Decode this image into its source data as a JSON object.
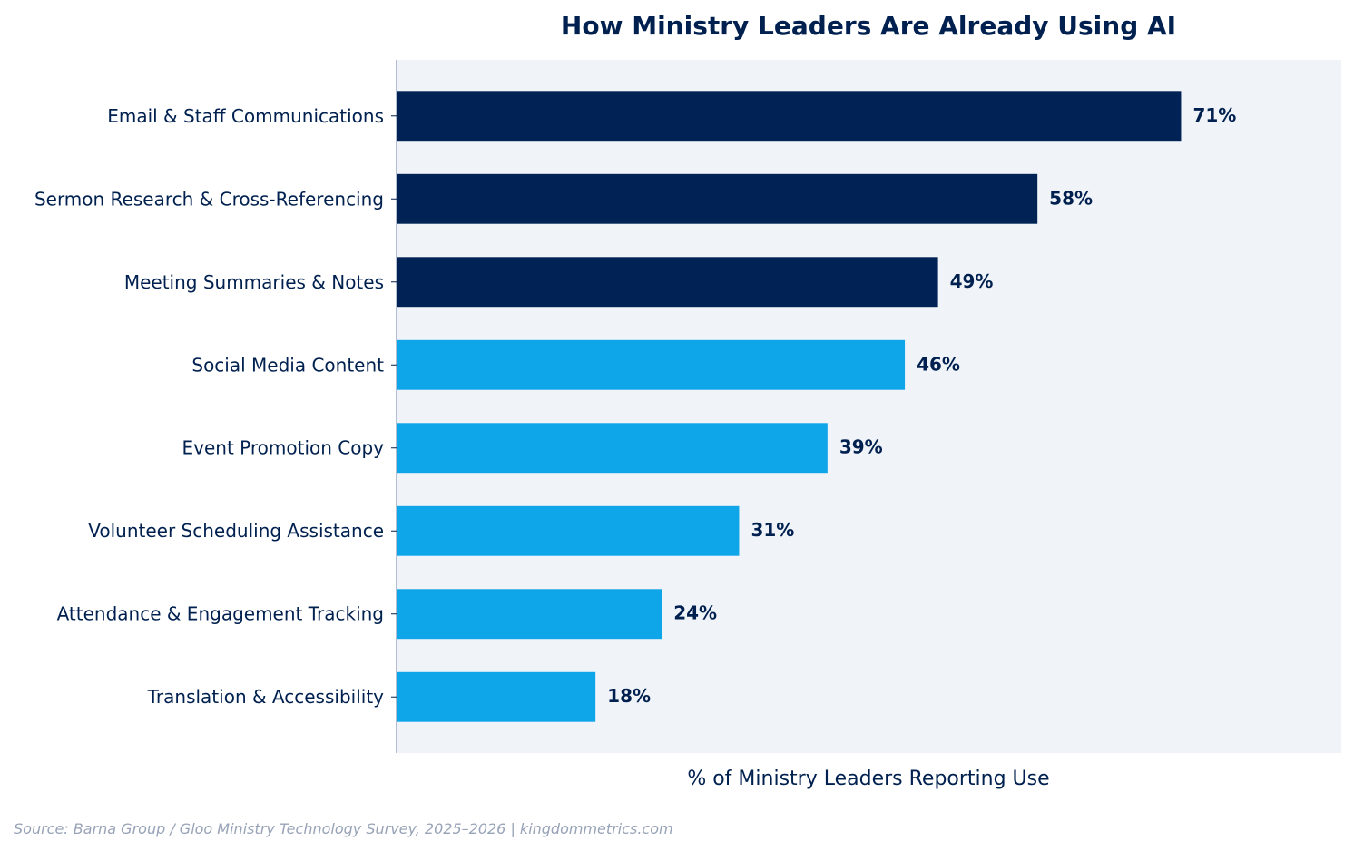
{
  "chart_data": {
    "type": "bar",
    "orientation": "horizontal",
    "title": "How Ministry Leaders Are Already Using AI",
    "xlabel": "% of Ministry Leaders Reporting Use",
    "ylabel": "",
    "xlim": [
      0,
      85.5
    ],
    "grid": false,
    "categories": [
      "Email & Staff Communications",
      "Sermon Research & Cross-Referencing",
      "Meeting Summaries & Notes",
      "Social Media Content",
      "Event Promotion Copy",
      "Volunteer Scheduling Assistance",
      "Attendance & Engagement Tracking",
      "Translation & Accessibility"
    ],
    "values": [
      71,
      58,
      49,
      46,
      39,
      31,
      24,
      18
    ],
    "value_labels": [
      "71%",
      "58%",
      "49%",
      "46%",
      "39%",
      "31%",
      "24%",
      "18%"
    ],
    "colors": [
      "#002255",
      "#002255",
      "#002255",
      "#0ea5e9",
      "#0ea5e9",
      "#0ea5e9",
      "#0ea5e9",
      "#0ea5e9"
    ],
    "source": "Source: Barna Group / Gloo Ministry Technology Survey, 2025–2026  |  kingdommetrics.com"
  },
  "style": {
    "plot_background": "#f0f4f9",
    "text_color": "#00204f",
    "axis_color": "#9aa9c6",
    "source_color": "#98a3b7"
  }
}
